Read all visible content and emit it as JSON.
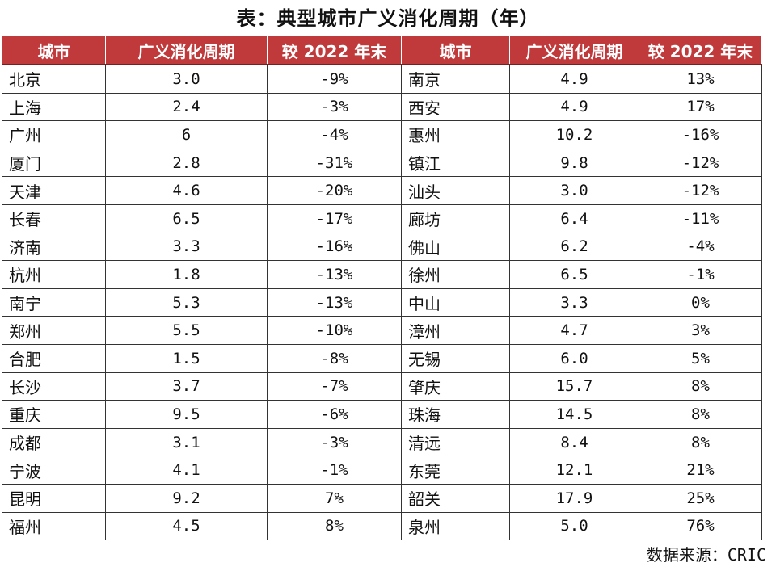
{
  "title": "表：典型城市广义消化周期（年）",
  "headers": [
    "城市",
    "广义消化周期",
    "较 2022 年末",
    "城市",
    "广义消化周期",
    "较 2022 年末"
  ],
  "rows": [
    {
      "city1": "北京",
      "cycle1": "3.0",
      "change1": "-9%",
      "city2": "南京",
      "cycle2": "4.9",
      "change2": "13%"
    },
    {
      "city1": "上海",
      "cycle1": "2.4",
      "change1": "-3%",
      "city2": "西安",
      "cycle2": "4.9",
      "change2": "17%"
    },
    {
      "city1": "广州",
      "cycle1": "6",
      "change1": "-4%",
      "city2": "惠州",
      "cycle2": "10.2",
      "change2": "-16%"
    },
    {
      "city1": "厦门",
      "cycle1": "2.8",
      "change1": "-31%",
      "city2": "镇江",
      "cycle2": "9.8",
      "change2": "-12%"
    },
    {
      "city1": "天津",
      "cycle1": "4.6",
      "change1": "-20%",
      "city2": "汕头",
      "cycle2": "3.0",
      "change2": "-12%"
    },
    {
      "city1": "长春",
      "cycle1": "6.5",
      "change1": "-17%",
      "city2": "廊坊",
      "cycle2": "6.4",
      "change2": "-11%"
    },
    {
      "city1": "济南",
      "cycle1": "3.3",
      "change1": "-16%",
      "city2": "佛山",
      "cycle2": "6.2",
      "change2": "-4%"
    },
    {
      "city1": "杭州",
      "cycle1": "1.8",
      "change1": "-13%",
      "city2": "徐州",
      "cycle2": "6.5",
      "change2": "-1%"
    },
    {
      "city1": "南宁",
      "cycle1": "5.3",
      "change1": "-13%",
      "city2": "中山",
      "cycle2": "3.3",
      "change2": "0%"
    },
    {
      "city1": "郑州",
      "cycle1": "5.5",
      "change1": "-10%",
      "city2": "漳州",
      "cycle2": "4.7",
      "change2": "3%"
    },
    {
      "city1": "合肥",
      "cycle1": "1.5",
      "change1": "-8%",
      "city2": "无锡",
      "cycle2": "6.0",
      "change2": "5%"
    },
    {
      "city1": "长沙",
      "cycle1": "3.7",
      "change1": "-7%",
      "city2": "肇庆",
      "cycle2": "15.7",
      "change2": "8%"
    },
    {
      "city1": "重庆",
      "cycle1": "9.5",
      "change1": "-6%",
      "city2": "珠海",
      "cycle2": "14.5",
      "change2": "8%"
    },
    {
      "city1": "成都",
      "cycle1": "3.1",
      "change1": "-3%",
      "city2": "清远",
      "cycle2": "8.4",
      "change2": "8%"
    },
    {
      "city1": "宁波",
      "cycle1": "4.1",
      "change1": "-1%",
      "city2": "东莞",
      "cycle2": "12.1",
      "change2": "21%"
    },
    {
      "city1": "昆明",
      "cycle1": "9.2",
      "change1": "7%",
      "city2": "韶关",
      "cycle2": "17.9",
      "change2": "25%"
    },
    {
      "city1": "福州",
      "cycle1": "4.5",
      "change1": "8%",
      "city2": "泉州",
      "cycle2": "5.0",
      "change2": "76%"
    }
  ],
  "source": {
    "label": "数据来源：",
    "value": "CRIC"
  },
  "colors": {
    "header_bg": "#c0393b",
    "header_text": "#ffffff",
    "border": "#333333"
  }
}
